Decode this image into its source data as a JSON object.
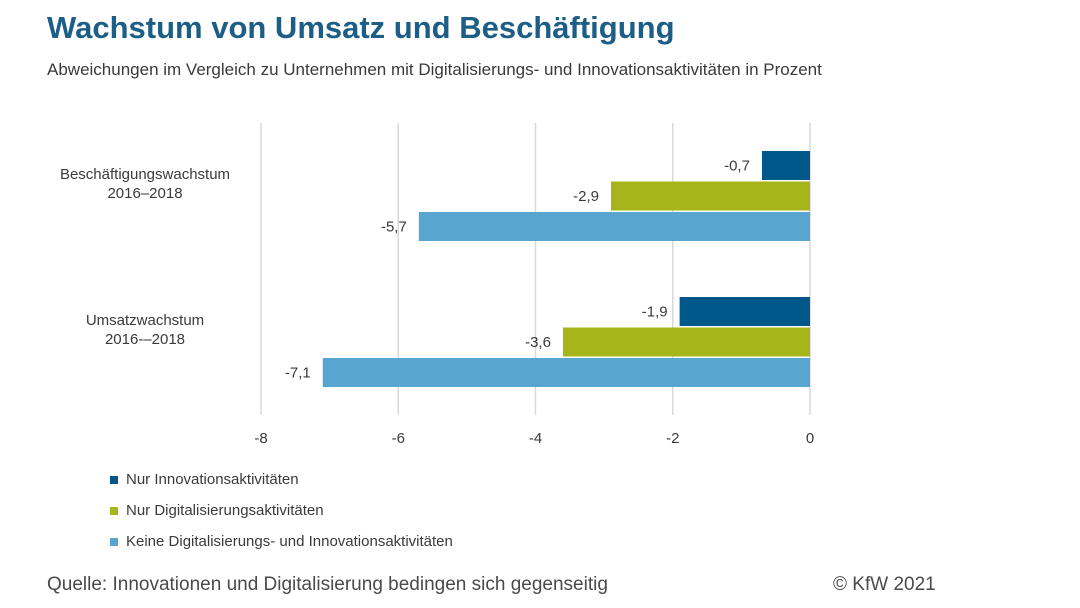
{
  "page": {
    "title": "Wachstum von Umsatz und Beschäftigung",
    "subtitle": "Abweichungen im Vergleich zu Unternehmen mit Digitalisierungs- und Innovationsaktivitäten in Prozent",
    "source": "Quelle: Innovationen und Digitalisierung bedingen sich gegenseitig",
    "copyright": "© KfW 2021"
  },
  "chart_data": {
    "type": "bar",
    "orientation": "horizontal",
    "title": "Wachstum von Umsatz und Beschäftigung",
    "subtitle": "Abweichungen im Vergleich zu Unternehmen mit Digitalisierungs- und Innovationsaktivitäten in Prozent",
    "xlabel": "",
    "ylabel": "",
    "xlim": [
      -8,
      0
    ],
    "xticks": [
      -8,
      -6,
      -4,
      -2,
      0
    ],
    "xtick_labels": [
      "-8",
      "-6",
      "-4",
      "-2",
      "0"
    ],
    "grid": true,
    "legend_position": "bottom-left",
    "categories": [
      [
        "Beschäftigungswachstum",
        "2016–2018"
      ],
      [
        "Umsatzwachstum",
        "2016-–2018"
      ]
    ],
    "series": [
      {
        "name": "Nur Innovationsaktivitäten",
        "color": "#00578a",
        "values": [
          -0.7,
          -1.9
        ],
        "labels": [
          "-0,7",
          "-1,9"
        ]
      },
      {
        "name": "Nur Digitalisierungsaktivitäten",
        "color": "#a6b51a",
        "values": [
          -2.9,
          -3.6
        ],
        "labels": [
          "-2,9",
          "-3,6"
        ]
      },
      {
        "name": "Keine Digitalisierungs- und Innovationsaktivitäten",
        "color": "#58a6cf",
        "values": [
          -5.7,
          -7.1
        ],
        "labels": [
          "-5,7",
          "-7,1"
        ]
      }
    ]
  }
}
